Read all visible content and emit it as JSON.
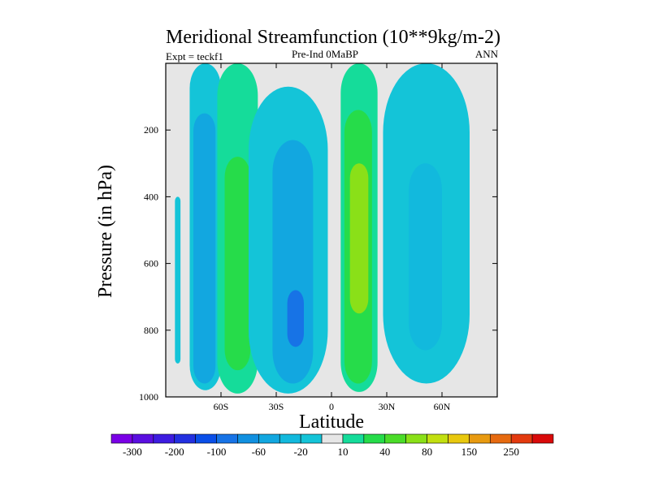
{
  "chart_data": {
    "type": "heatmap",
    "subtype": "filled-contour",
    "title": "Meridional Streamfunction (10**9kg/m-2)",
    "left_annotation": "Expt = teckf1",
    "center_annotation": "Pre-Ind 0MaBP",
    "right_annotation": "ANN",
    "xlabel": "Latitude",
    "ylabel": "Pressure (in hPa)",
    "xlim": [
      -90,
      90
    ],
    "ylim": [
      1000,
      0
    ],
    "x_ticks": [
      {
        "value": -60,
        "label": "60S"
      },
      {
        "value": -30,
        "label": "30S"
      },
      {
        "value": 0,
        "label": "0"
      },
      {
        "value": 30,
        "label": "30N"
      },
      {
        "value": 60,
        "label": "60N"
      }
    ],
    "y_ticks": [
      {
        "value": 200,
        "label": "200"
      },
      {
        "value": 400,
        "label": "400"
      },
      {
        "value": 600,
        "label": "600"
      },
      {
        "value": 800,
        "label": "800"
      },
      {
        "value": 1000,
        "label": "1000"
      }
    ],
    "colorbar": {
      "levels": [
        -300,
        -250,
        -200,
        -150,
        -100,
        -80,
        -60,
        -40,
        -20,
        -10,
        10,
        20,
        40,
        60,
        80,
        100,
        150,
        200,
        250,
        300
      ],
      "labels": [
        "-300",
        "-200",
        "-100",
        "-60",
        "-20",
        "10",
        "40",
        "80",
        "150",
        "250"
      ],
      "colors": [
        "#7a00e6",
        "#5a0fe0",
        "#3d1ce0",
        "#2330e0",
        "#0a4fe8",
        "#1773e6",
        "#1190e0",
        "#12a7e0",
        "#12b9dd",
        "#14c4d8",
        "#e6e6e6",
        "#15dc9a",
        "#26dc4a",
        "#4bdc29",
        "#8ae018",
        "#c2df10",
        "#e8c80e",
        "#e89a10",
        "#e66a10",
        "#e33a0f",
        "#d90a0a"
      ]
    },
    "cells": [
      {
        "name": "polar-south-weak-negative",
        "class": 9,
        "lat": [
          -85,
          -82
        ],
        "p": [
          400,
          900
        ]
      },
      {
        "name": "sh-negative-cell",
        "class": 9,
        "lat": [
          -77,
          -60
        ],
        "p": [
          0,
          980
        ]
      },
      {
        "name": "sh-negative-cell-core",
        "class": 7,
        "lat": [
          -75,
          -63
        ],
        "p": [
          150,
          960
        ]
      },
      {
        "name": "sh-ferrel-positive-cell",
        "class": 11,
        "lat": [
          -62,
          -40
        ],
        "p": [
          0,
          990
        ]
      },
      {
        "name": "sh-ferrel-positive-core",
        "class": 12,
        "lat": [
          -58,
          -44
        ],
        "p": [
          280,
          920
        ]
      },
      {
        "name": "sh-hadley-negative-cell",
        "class": 9,
        "lat": [
          -45,
          -2
        ],
        "p": [
          70,
          990
        ]
      },
      {
        "name": "sh-hadley-core",
        "class": 7,
        "lat": [
          -32,
          -10
        ],
        "p": [
          230,
          960
        ]
      },
      {
        "name": "sh-hadley-center",
        "class": 5,
        "lat": [
          -24,
          -15
        ],
        "p": [
          680,
          850
        ]
      },
      {
        "name": "nh-hadley-positive-cell",
        "class": 11,
        "lat": [
          5,
          25
        ],
        "p": [
          0,
          985
        ]
      },
      {
        "name": "nh-hadley-core",
        "class": 12,
        "lat": [
          7,
          22
        ],
        "p": [
          140,
          960
        ]
      },
      {
        "name": "nh-hadley-center",
        "class": 14,
        "lat": [
          10,
          20
        ],
        "p": [
          300,
          750
        ]
      },
      {
        "name": "nh-ferrel-negative-cell",
        "class": 9,
        "lat": [
          28,
          75
        ],
        "p": [
          0,
          960
        ]
      },
      {
        "name": "nh-ferrel-core",
        "class": 8,
        "lat": [
          42,
          60
        ],
        "p": [
          300,
          860
        ]
      }
    ]
  }
}
